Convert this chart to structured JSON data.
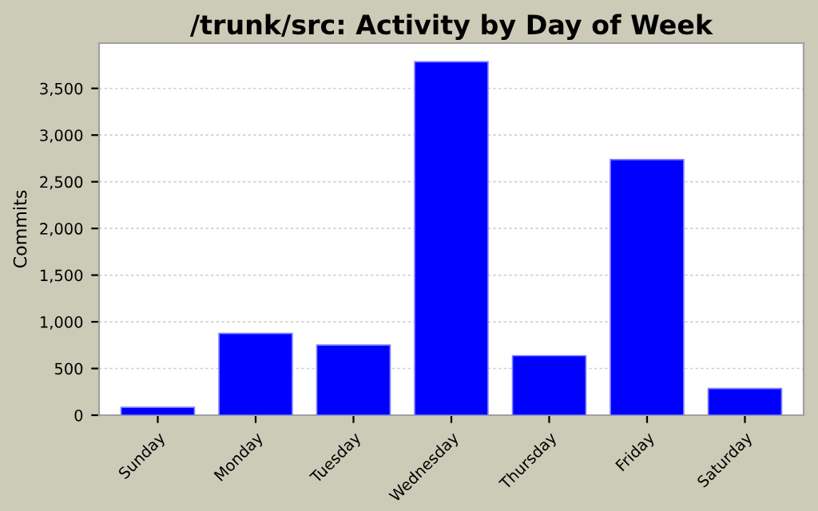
{
  "chart_data": {
    "type": "bar",
    "title": "/trunk/src: Activity by Day of Week",
    "ylabel": "Commits",
    "categories": [
      "Sunday",
      "Monday",
      "Tuesday",
      "Wednesday",
      "Thursday",
      "Friday",
      "Saturday"
    ],
    "values": [
      85,
      876,
      751,
      3785,
      637,
      2737,
      285
    ],
    "color": "#0000ff",
    "ylim": [
      0,
      3985
    ],
    "yticks": [
      {
        "value": 0,
        "label": "0"
      },
      {
        "value": 500,
        "label": "500"
      },
      {
        "value": 1000,
        "label": "1,000"
      },
      {
        "value": 1500,
        "label": "1,500"
      },
      {
        "value": 2000,
        "label": "2,000"
      },
      {
        "value": 2500,
        "label": "2,500"
      },
      {
        "value": 3000,
        "label": "3,000"
      },
      {
        "value": 3500,
        "label": "3,500"
      }
    ],
    "grid": "y",
    "legend": false
  }
}
